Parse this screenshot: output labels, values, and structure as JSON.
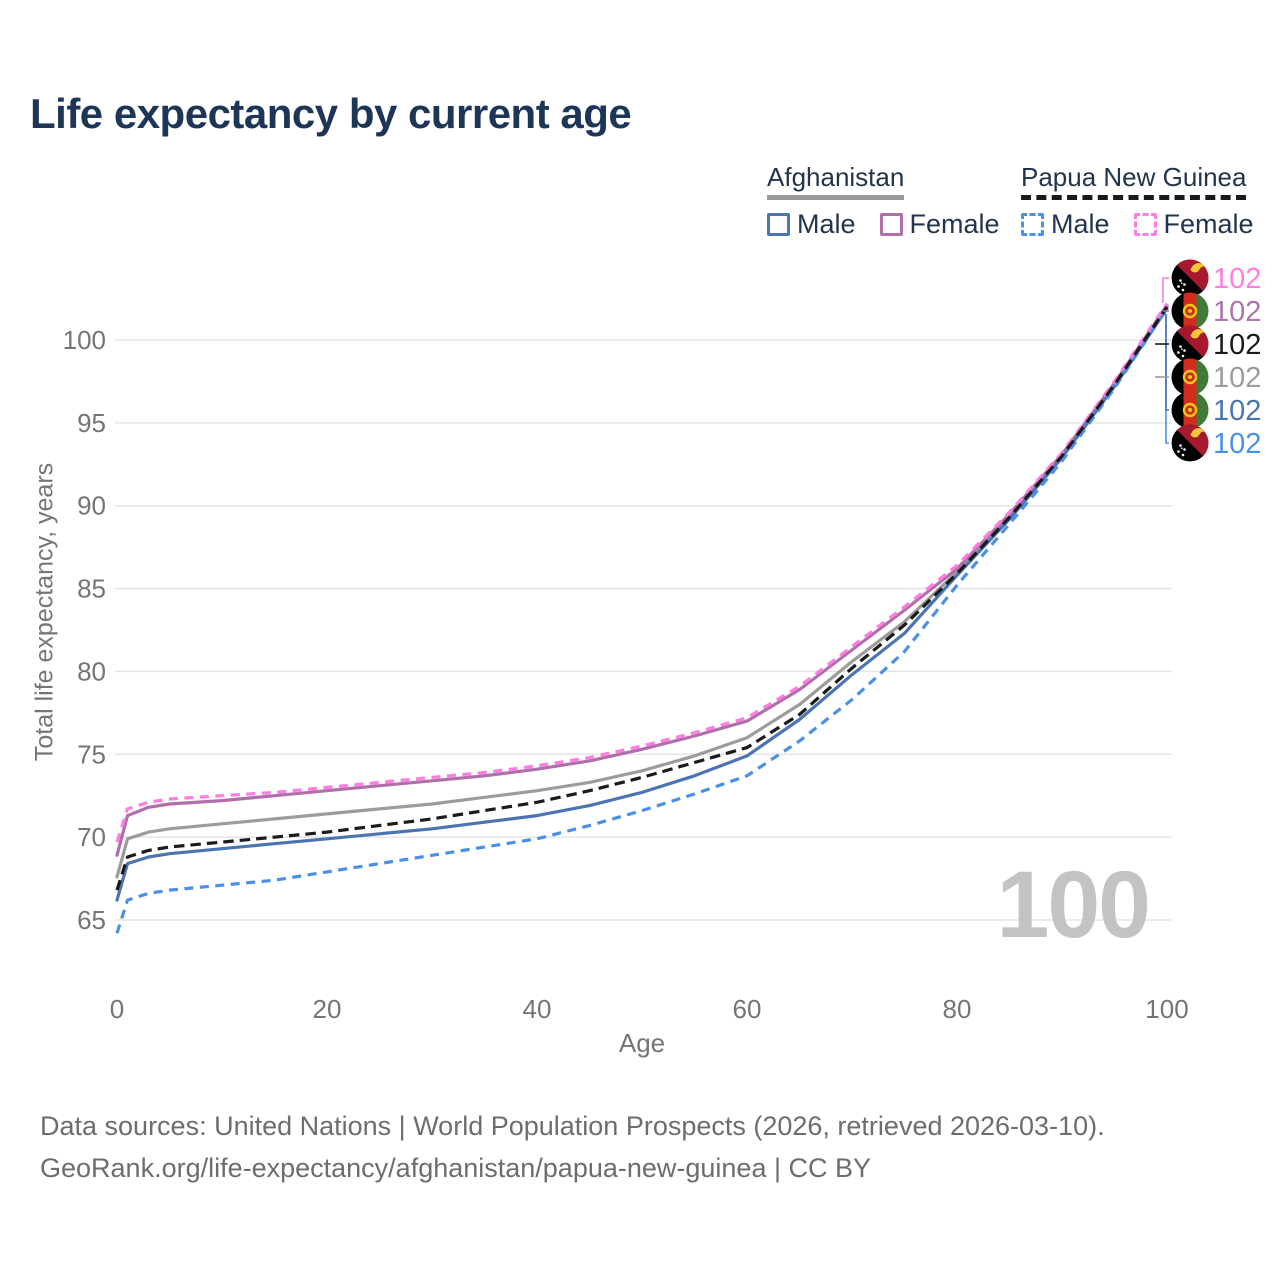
{
  "title": "Life expectancy by current age",
  "watermark": "100",
  "legend": {
    "groups": [
      {
        "country": "Afghanistan",
        "style": "solid",
        "underline_color": "#9a9a9a",
        "items": [
          {
            "label": "Male",
            "color": "#4a74b2",
            "dashed": false
          },
          {
            "label": "Female",
            "color": "#b06fab",
            "dashed": false
          }
        ]
      },
      {
        "country": "Papua New Guinea",
        "style": "dashed",
        "underline_color": "#1a1a1a",
        "items": [
          {
            "label": "Male",
            "color": "#4b90e8",
            "dashed": true
          },
          {
            "label": "Female",
            "color": "#ff7de0",
            "dashed": true
          }
        ]
      }
    ]
  },
  "axes": {
    "y_label": "Total life expectancy, years",
    "x_label": "Age",
    "y_ticks": [
      65,
      70,
      75,
      80,
      85,
      90,
      95,
      100
    ],
    "x_ticks": [
      0,
      20,
      40,
      60,
      80,
      100
    ],
    "x_range": [
      0,
      100
    ],
    "y_range": [
      63,
      104
    ],
    "grid": "horizontal-only"
  },
  "colors": {
    "background": "#ffffff",
    "title": "#1d3657",
    "legend_text": "#22354c",
    "axis_text": "#757575",
    "gridline": "#e5e5e5",
    "watermark": "#c3c3c3",
    "footer_text": "#6d6d6d",
    "flag_af_black": "#000000",
    "flag_af_red": "#d32b1e",
    "flag_af_green": "#3f7a36",
    "flag_af_gold": "#f7c51e",
    "flag_pg_black": "#000000",
    "flag_pg_red": "#a8182e",
    "flag_pg_gold": "#f3c737",
    "flag_pg_white": "#ffffff"
  },
  "chart_data": {
    "type": "line",
    "title": "Life expectancy by current age",
    "xlabel": "Age",
    "ylabel": "Total life expectancy, years",
    "xlim": [
      0,
      100
    ],
    "ylim": [
      63,
      104
    ],
    "legend_position": "top-right",
    "x": [
      0,
      1,
      3,
      5,
      10,
      15,
      20,
      25,
      30,
      35,
      40,
      45,
      50,
      55,
      60,
      65,
      70,
      75,
      80,
      85,
      90,
      95,
      100
    ],
    "series": [
      {
        "name": "Afghanistan Both sexes",
        "country": "Afghanistan",
        "sex": "Both sexes",
        "color": "#9c9c9c",
        "line": "solid",
        "values": [
          67.6,
          69.9,
          70.3,
          70.5,
          70.8,
          71.1,
          71.4,
          71.7,
          72.0,
          72.4,
          72.8,
          73.3,
          74.0,
          74.9,
          76.0,
          78.0,
          80.6,
          83.0,
          86.0,
          89.4,
          93.0,
          97.3,
          102.0
        ]
      },
      {
        "name": "Afghanistan Female",
        "country": "Afghanistan",
        "sex": "Female",
        "color": "#b06fab",
        "line": "solid",
        "values": [
          68.9,
          71.3,
          71.8,
          72.0,
          72.2,
          72.5,
          72.8,
          73.1,
          73.4,
          73.7,
          74.1,
          74.6,
          75.3,
          76.1,
          77.0,
          78.9,
          81.3,
          83.7,
          86.2,
          89.5,
          93.1,
          97.4,
          102.1
        ]
      },
      {
        "name": "Afghanistan Male",
        "country": "Afghanistan",
        "sex": "Male",
        "color": "#4a74b2",
        "line": "solid",
        "values": [
          66.2,
          68.4,
          68.8,
          69.0,
          69.3,
          69.6,
          69.9,
          70.2,
          70.5,
          70.9,
          71.3,
          71.9,
          72.7,
          73.7,
          74.9,
          77.1,
          79.8,
          82.3,
          85.8,
          89.2,
          92.9,
          97.2,
          101.9
        ]
      },
      {
        "name": "Papua New Guinea Male",
        "country": "Papua New Guinea",
        "sex": "Male",
        "color": "#4b90e8",
        "line": "dashed",
        "values": [
          64.2,
          66.2,
          66.6,
          66.8,
          67.1,
          67.4,
          67.9,
          68.4,
          68.9,
          69.4,
          69.9,
          70.7,
          71.6,
          72.6,
          73.7,
          75.8,
          78.3,
          81.2,
          85.2,
          88.9,
          92.7,
          97.1,
          101.9
        ]
      },
      {
        "name": "Papua New Guinea Female",
        "country": "Papua New Guinea",
        "sex": "Female",
        "color": "#ff7de0",
        "line": "dashed",
        "values": [
          69.7,
          71.7,
          72.1,
          72.3,
          72.5,
          72.7,
          73.0,
          73.3,
          73.6,
          73.9,
          74.3,
          74.8,
          75.5,
          76.3,
          77.2,
          79.1,
          81.5,
          83.9,
          86.4,
          89.6,
          93.2,
          97.5,
          102.2
        ]
      },
      {
        "name": "Papua New Guinea Both sexes",
        "country": "Papua New Guinea",
        "sex": "Both sexes",
        "color": "#1b1b1b",
        "line": "dashed",
        "values": [
          66.8,
          68.8,
          69.2,
          69.4,
          69.7,
          70.0,
          70.3,
          70.7,
          71.1,
          71.6,
          72.1,
          72.8,
          73.6,
          74.5,
          75.4,
          77.4,
          80.2,
          82.8,
          85.9,
          89.3,
          93.0,
          97.3,
          102.0
        ]
      }
    ],
    "end_labels": [
      {
        "country": "Papua New Guinea",
        "sex": "Female",
        "flag": "pg",
        "value": "102",
        "color": "#ff7de0"
      },
      {
        "country": "Afghanistan",
        "sex": "Female",
        "flag": "af",
        "value": "102",
        "color": "#ae74ac"
      },
      {
        "country": "Papua New Guinea",
        "sex": "Both sexes",
        "flag": "pg",
        "value": "102",
        "color": "#1b1b1b"
      },
      {
        "country": "Afghanistan",
        "sex": "Both sexes",
        "flag": "af",
        "value": "102",
        "color": "#9c9c9c"
      },
      {
        "country": "Afghanistan",
        "sex": "Male",
        "flag": "af",
        "value": "102",
        "color": "#4a74b2"
      },
      {
        "country": "Papua New Guinea",
        "sex": "Male",
        "flag": "pg",
        "value": "102",
        "color": "#4b90e8"
      }
    ]
  },
  "footer": {
    "line1": "Data sources: United Nations | World Population Prospects (2026, retrieved 2026-03-10).",
    "line2": "GeoRank.org/life-expectancy/afghanistan/papua-new-guinea | CC BY"
  }
}
